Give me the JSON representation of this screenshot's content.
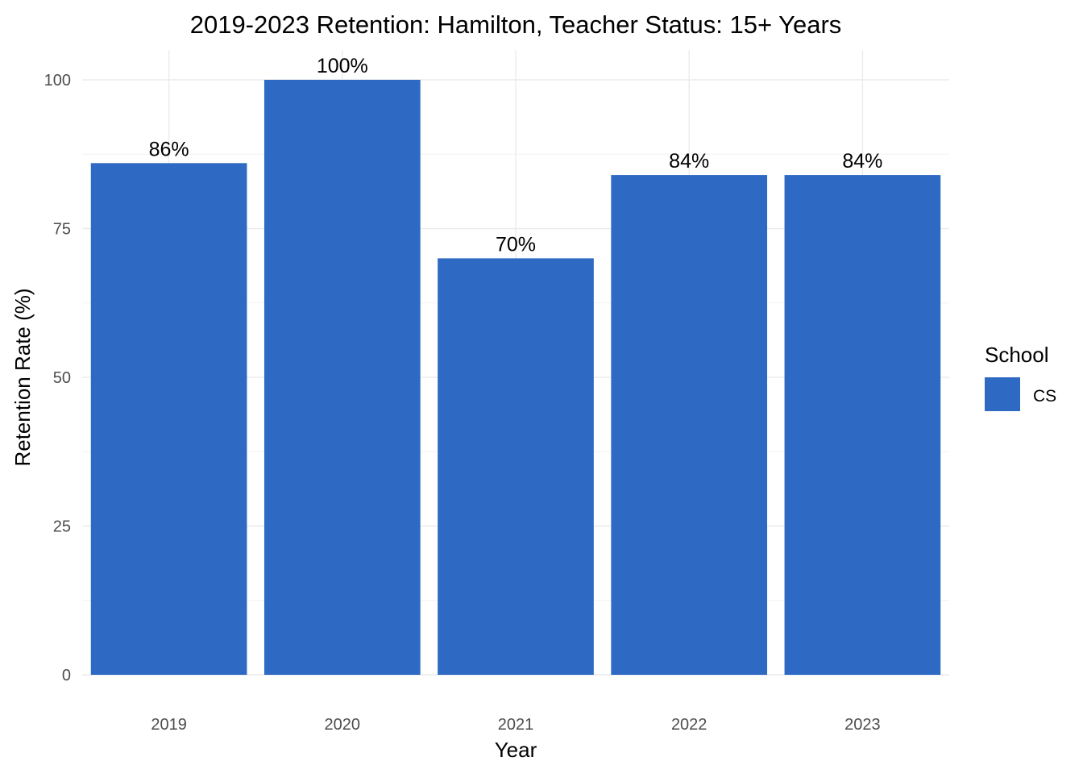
{
  "chart_data": {
    "type": "bar",
    "title": "2019-2023 Retention: Hamilton, Teacher Status: 15+ Years",
    "xlabel": "Year",
    "ylabel": "Retention Rate (%)",
    "categories": [
      "2019",
      "2020",
      "2021",
      "2022",
      "2023"
    ],
    "series": [
      {
        "name": "CS",
        "values": [
          86,
          100,
          70,
          84,
          84
        ],
        "labels": [
          "86%",
          "100%",
          "70%",
          "84%",
          "84%"
        ],
        "color": "#2e69c3"
      }
    ],
    "ylim": [
      0,
      100
    ],
    "y_ticks": [
      "0",
      "25",
      "50",
      "75",
      "100"
    ],
    "grid": true,
    "legend": {
      "title": "School",
      "placement": "right"
    }
  }
}
